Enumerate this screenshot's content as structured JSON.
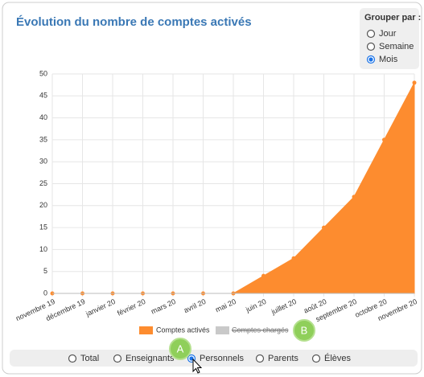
{
  "title": "Évolution du nombre de comptes activés",
  "group_by": {
    "label": "Grouper par :",
    "options": [
      "Jour",
      "Semaine",
      "Mois"
    ],
    "selected": 2
  },
  "chart_data": {
    "type": "area",
    "categories": [
      "novembre 19",
      "décembre 19",
      "janvier 20",
      "février 20",
      "mars 20",
      "avril 20",
      "mai 20",
      "juin 20",
      "juillet 20",
      "août 20",
      "septembre 20",
      "octobre 20",
      "novembre 20"
    ],
    "series": [
      {
        "name": "Comptes activés",
        "color": "#fd8c2f",
        "values": [
          0,
          0,
          0,
          0,
          0,
          0,
          0,
          4,
          8,
          15,
          22,
          35,
          48
        ]
      }
    ],
    "hidden_series": [
      {
        "name": "Comptes chargés",
        "color": "#c9c9c9"
      }
    ],
    "ylim": [
      0,
      50
    ],
    "yticks": [
      0,
      5,
      10,
      15,
      20,
      25,
      30,
      35,
      40,
      45,
      50
    ],
    "grid": true
  },
  "filters": {
    "options": [
      "Total",
      "Enseignants",
      "Personnels",
      "Parents",
      "Élèves"
    ],
    "selected": 2
  },
  "annotations": [
    "A",
    "B"
  ]
}
